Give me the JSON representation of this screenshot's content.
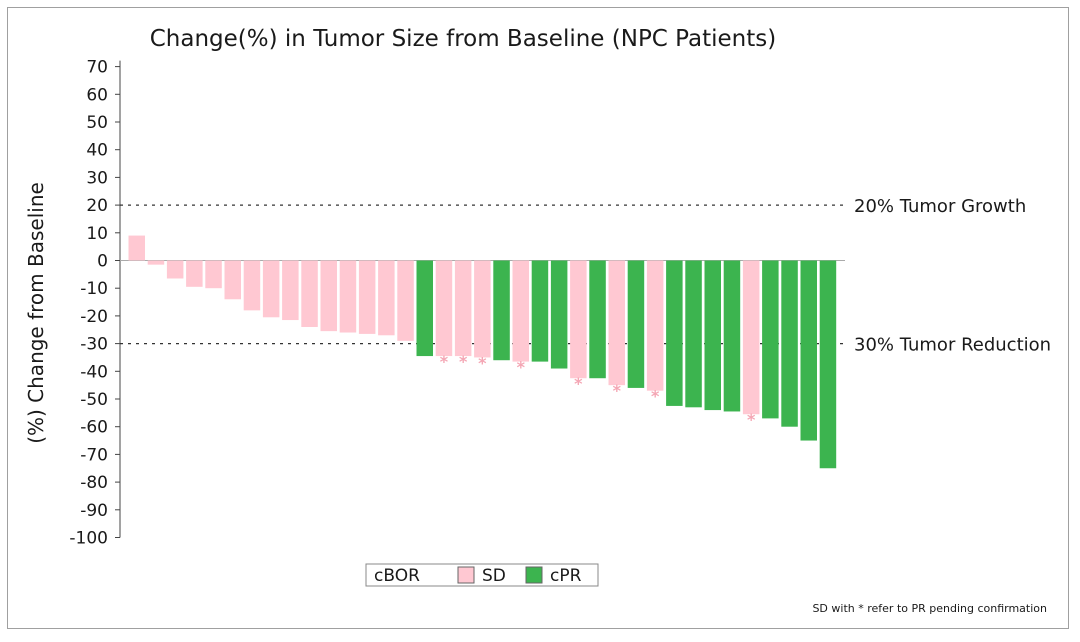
{
  "chart_data": {
    "type": "bar",
    "title": "Change(%) in Tumor Size from Baseline (NPC Patients)",
    "ylabel": "(%) Change from Baseline",
    "xlabel": "",
    "ylim": [
      -100,
      70
    ],
    "yticks": [
      70,
      60,
      50,
      40,
      30,
      20,
      10,
      0,
      -10,
      -20,
      -30,
      -40,
      -50,
      -60,
      -70,
      -80,
      -90,
      -100
    ],
    "reference_lines": [
      {
        "value": 20,
        "label": "20% Tumor Growth"
      },
      {
        "value": -30,
        "label": "30% Tumor Reduction"
      }
    ],
    "legend": {
      "title": "cBOR",
      "entries": [
        {
          "key": "SD",
          "label": "SD",
          "color": "#ffc8d2"
        },
        {
          "key": "cPR",
          "label": "cPR",
          "color": "#3cb44f"
        }
      ]
    },
    "star_color": "#f4a6b4",
    "footnote": "SD with * refer to PR pending confirmation",
    "bars": [
      {
        "value": 9,
        "category": "SD",
        "star": false
      },
      {
        "value": -1.5,
        "category": "SD",
        "star": false
      },
      {
        "value": -6.5,
        "category": "SD",
        "star": false
      },
      {
        "value": -9.5,
        "category": "SD",
        "star": false
      },
      {
        "value": -10,
        "category": "SD",
        "star": false
      },
      {
        "value": -14,
        "category": "SD",
        "star": false
      },
      {
        "value": -18,
        "category": "SD",
        "star": false
      },
      {
        "value": -20.5,
        "category": "SD",
        "star": false
      },
      {
        "value": -21.5,
        "category": "SD",
        "star": false
      },
      {
        "value": -24,
        "category": "SD",
        "star": false
      },
      {
        "value": -25.5,
        "category": "SD",
        "star": false
      },
      {
        "value": -26,
        "category": "SD",
        "star": false
      },
      {
        "value": -26.5,
        "category": "SD",
        "star": false
      },
      {
        "value": -27,
        "category": "SD",
        "star": false
      },
      {
        "value": -29,
        "category": "SD",
        "star": false
      },
      {
        "value": -34.5,
        "category": "cPR",
        "star": false
      },
      {
        "value": -34.5,
        "category": "SD",
        "star": true
      },
      {
        "value": -34.5,
        "category": "SD",
        "star": true
      },
      {
        "value": -35,
        "category": "SD",
        "star": true
      },
      {
        "value": -36,
        "category": "cPR",
        "star": false
      },
      {
        "value": -36.5,
        "category": "SD",
        "star": true
      },
      {
        "value": -36.5,
        "category": "cPR",
        "star": false
      },
      {
        "value": -39,
        "category": "cPR",
        "star": false
      },
      {
        "value": -42.5,
        "category": "SD",
        "star": true
      },
      {
        "value": -42.5,
        "category": "cPR",
        "star": false
      },
      {
        "value": -45,
        "category": "SD",
        "star": true
      },
      {
        "value": -46,
        "category": "cPR",
        "star": false
      },
      {
        "value": -47,
        "category": "SD",
        "star": true
      },
      {
        "value": -52.5,
        "category": "cPR",
        "star": false
      },
      {
        "value": -53,
        "category": "cPR",
        "star": false
      },
      {
        "value": -54,
        "category": "cPR",
        "star": false
      },
      {
        "value": -54.5,
        "category": "cPR",
        "star": false
      },
      {
        "value": -55.5,
        "category": "SD",
        "star": true
      },
      {
        "value": -57,
        "category": "cPR",
        "star": false
      },
      {
        "value": -60,
        "category": "cPR",
        "star": false
      },
      {
        "value": -65,
        "category": "cPR",
        "star": false
      },
      {
        "value": -75,
        "category": "cPR",
        "star": false
      }
    ]
  }
}
